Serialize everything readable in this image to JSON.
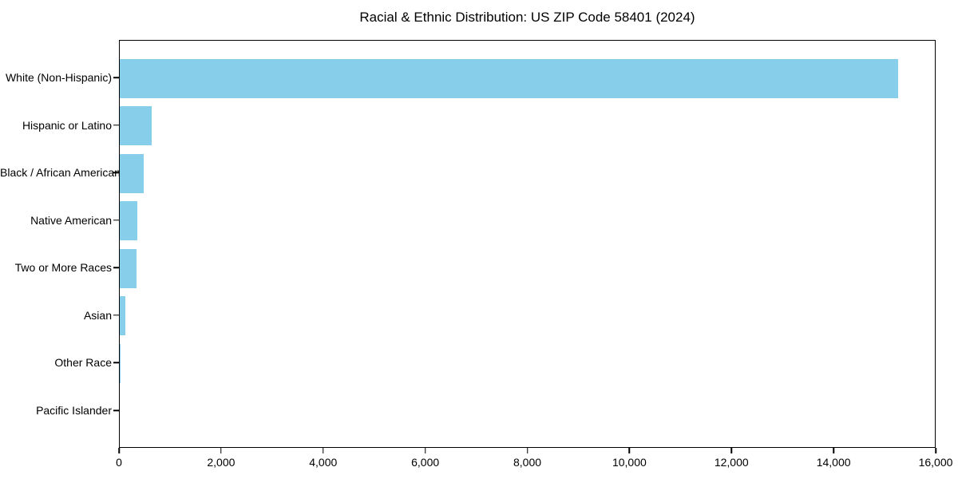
{
  "chart_data": {
    "type": "bar",
    "orientation": "horizontal",
    "title": "Racial & Ethnic Distribution: US ZIP Code 58401 (2024)",
    "categories": [
      "White (Non-Hispanic)",
      "Hispanic or Latino",
      "Black / African American",
      "Native American",
      "Two or More Races",
      "Asian",
      "Other Race",
      "Pacific Islander"
    ],
    "values": [
      15250,
      620,
      475,
      350,
      325,
      110,
      15,
      0
    ],
    "xlabel": "",
    "ylabel": "",
    "xlim": [
      0,
      16000
    ],
    "x_ticks": [
      0,
      2000,
      4000,
      6000,
      8000,
      10000,
      12000,
      14000,
      16000
    ],
    "x_tick_labels": [
      "0",
      "2,000",
      "4,000",
      "6,000",
      "8,000",
      "10,000",
      "12,000",
      "14,000",
      "16,000"
    ],
    "bar_color": "#87CEEB",
    "text_color": "#000000",
    "grid": false,
    "legend": "none"
  }
}
